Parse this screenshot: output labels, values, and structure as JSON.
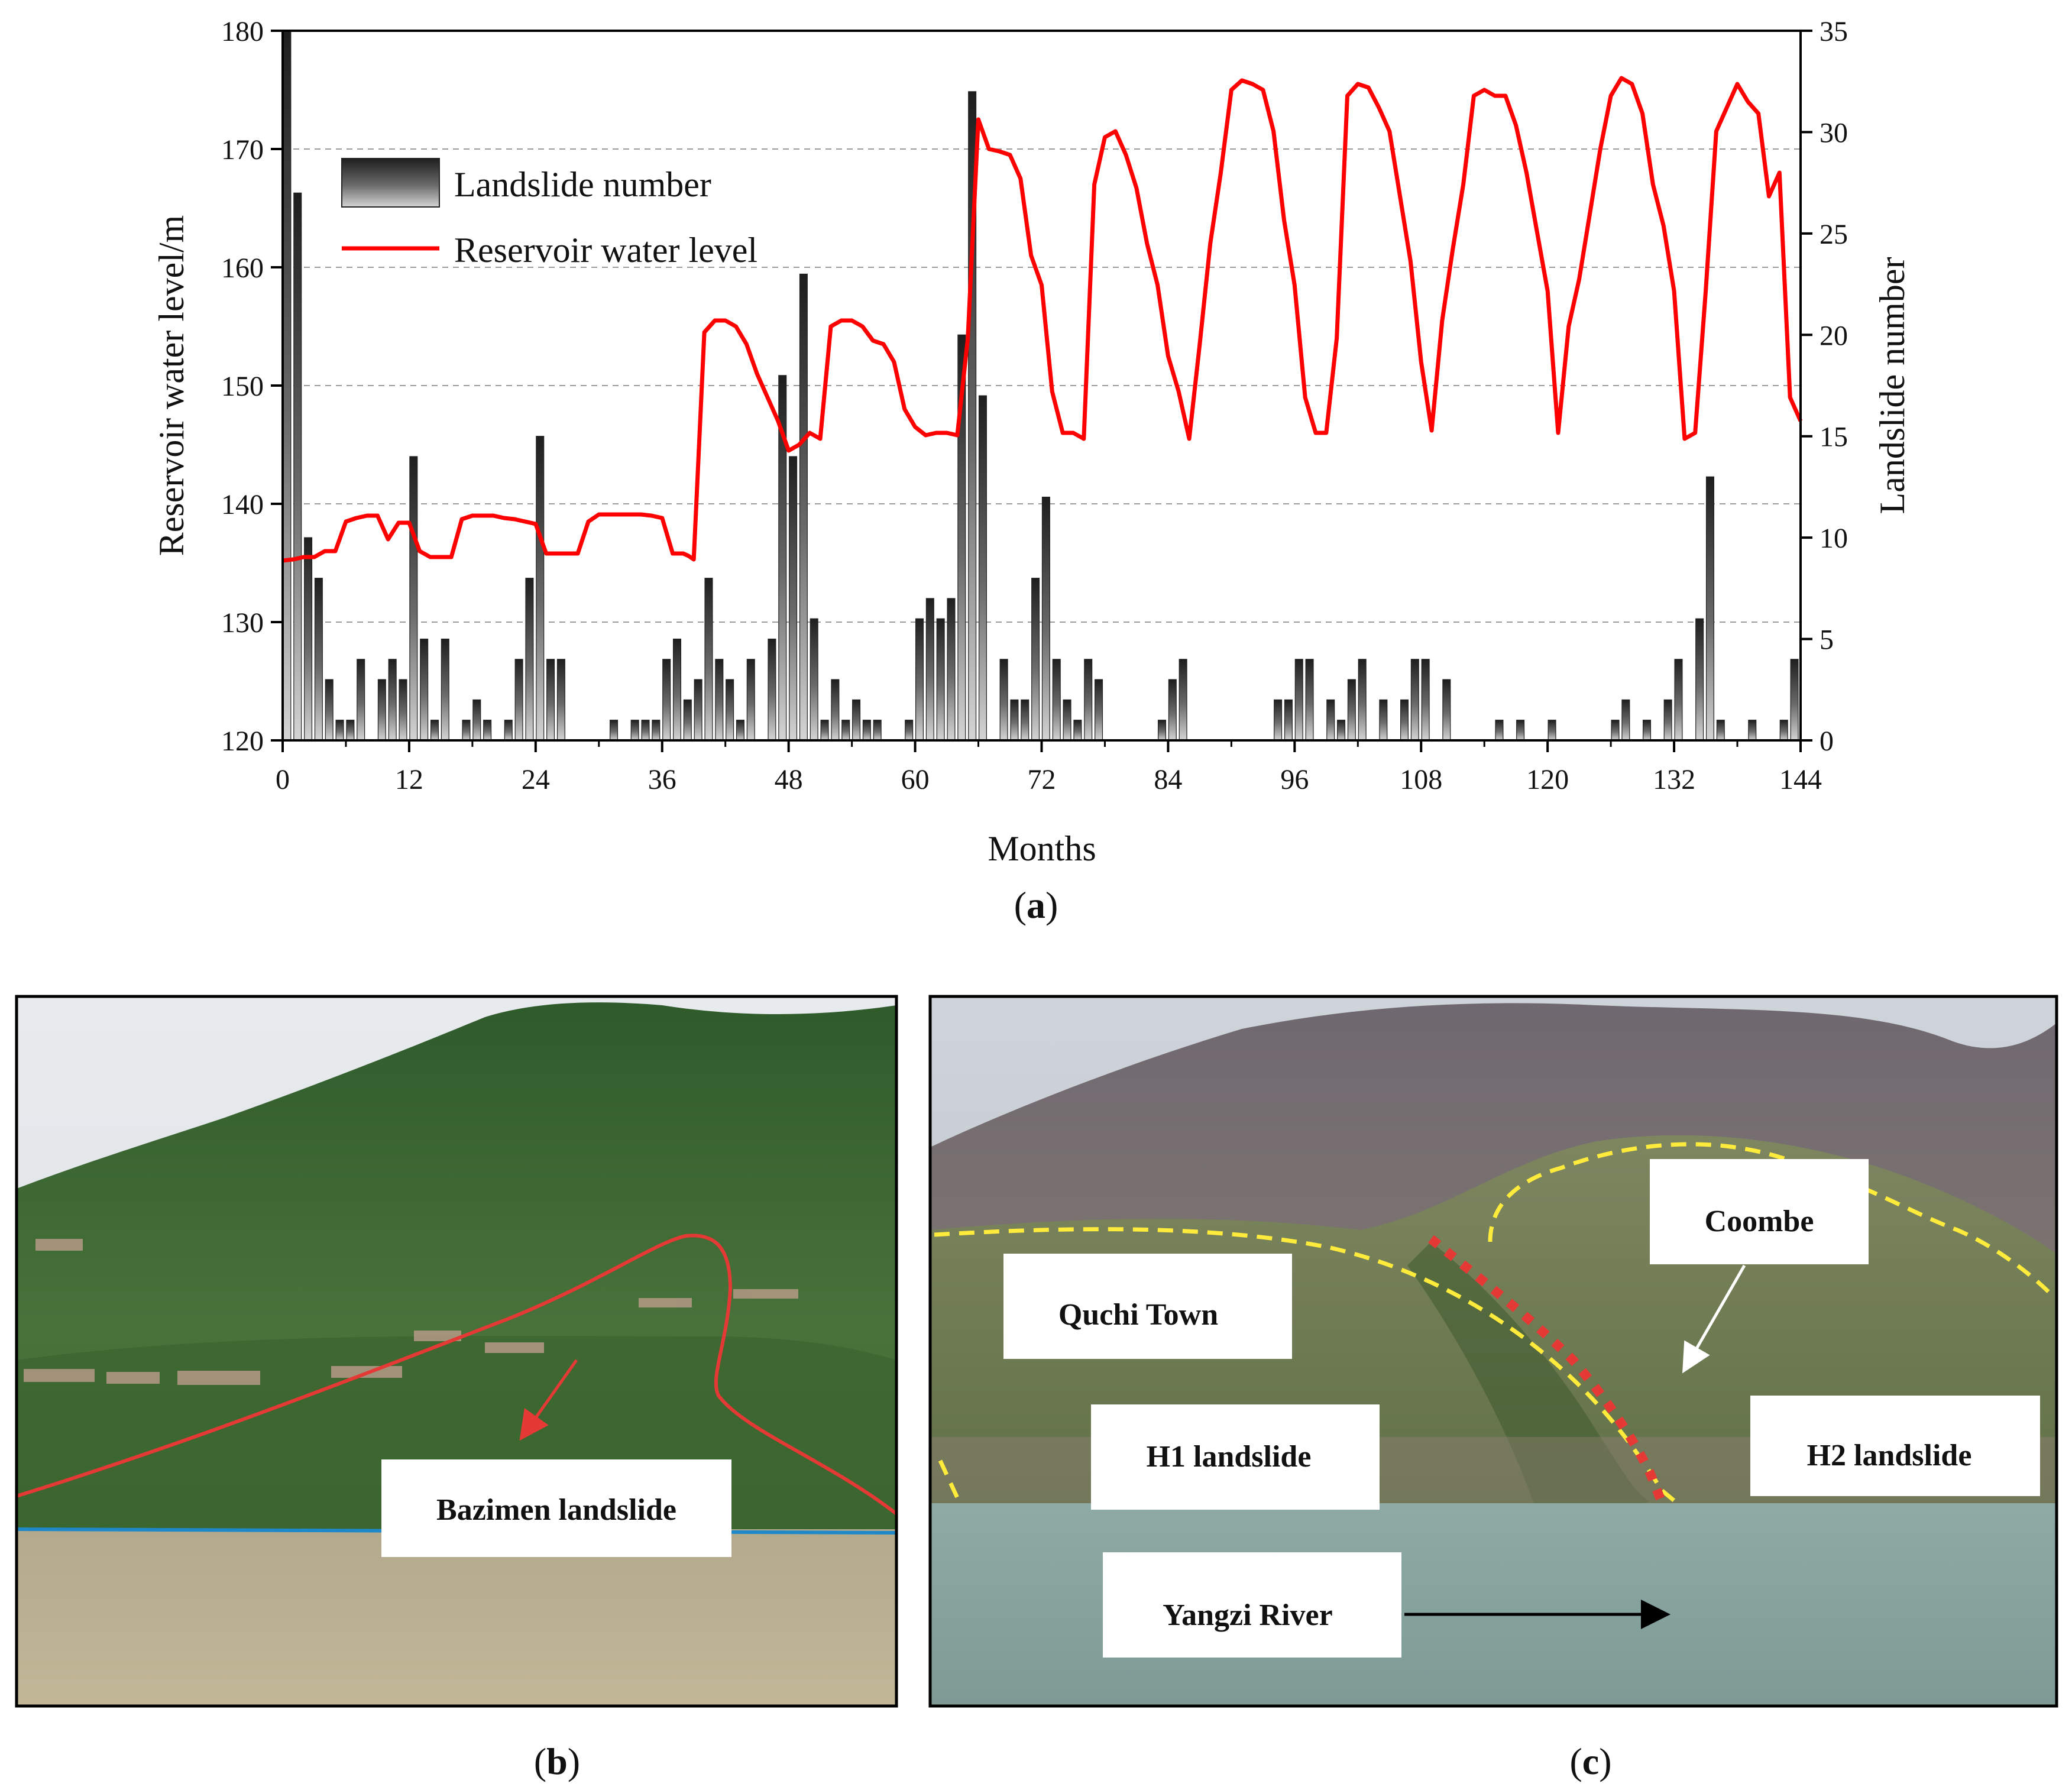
{
  "chart_data": {
    "type": "bar",
    "xlabel": "Months",
    "ylabel_left": "Reservoir water level/m",
    "ylabel_right": "Landslide number",
    "xlim": [
      0,
      144
    ],
    "ylim_left": [
      120,
      180
    ],
    "ylim_right": [
      0,
      35
    ],
    "x_ticks": [
      0,
      12,
      24,
      36,
      48,
      60,
      72,
      84,
      96,
      108,
      120,
      132,
      144
    ],
    "y_left_ticks": [
      120,
      130,
      140,
      150,
      160,
      170,
      180
    ],
    "y_right_ticks": [
      0,
      5,
      10,
      15,
      20,
      25,
      30,
      35
    ],
    "grid": "dashed horizontal",
    "legend_position": "top-left",
    "panel_label": "a",
    "series": [
      {
        "name": "Landslide number",
        "kind": "bar",
        "axis": "right",
        "x": [
          0,
          1,
          2,
          3,
          4,
          5,
          6,
          7,
          9,
          10,
          11,
          12,
          13,
          14,
          15,
          17,
          18,
          19,
          21,
          22,
          23,
          24,
          25,
          26,
          31,
          33,
          34,
          35,
          36,
          37,
          38,
          39,
          40,
          41,
          42,
          43,
          44,
          46,
          47,
          48,
          49,
          50,
          51,
          52,
          53,
          54,
          55,
          56,
          59,
          60,
          61,
          62,
          63,
          64,
          65,
          66,
          68,
          69,
          70,
          71,
          72,
          73,
          74,
          75,
          76,
          77,
          83,
          84,
          85,
          94,
          95,
          96,
          97,
          99,
          100,
          101,
          102,
          104,
          106,
          107,
          108,
          110,
          115,
          117,
          120,
          126,
          127,
          129,
          131,
          132,
          134,
          135,
          136,
          139,
          142,
          143
        ],
        "values": [
          35,
          27,
          10,
          8,
          3,
          1,
          1,
          4,
          3,
          4,
          3,
          14,
          5,
          1,
          5,
          1,
          2,
          1,
          1,
          4,
          8,
          15,
          4,
          4,
          1,
          1,
          1,
          1,
          4,
          5,
          2,
          3,
          8,
          4,
          3,
          1,
          4,
          5,
          18,
          14,
          23,
          6,
          1,
          3,
          1,
          2,
          1,
          1,
          1,
          6,
          7,
          6,
          7,
          20,
          32,
          17,
          4,
          2,
          2,
          8,
          12,
          4,
          2,
          1,
          4,
          3,
          1,
          3,
          4,
          2,
          2,
          4,
          4,
          2,
          1,
          3,
          4,
          2,
          2,
          4,
          4,
          3,
          1,
          1,
          1,
          1,
          2,
          1,
          2,
          4,
          6,
          13,
          1,
          1,
          1,
          4
        ]
      },
      {
        "name": "Reservoir water level",
        "kind": "line",
        "axis": "left",
        "color": "#ff0000",
        "x": [
          0,
          1,
          2,
          3,
          4,
          5,
          6,
          7,
          8,
          9,
          10,
          11,
          12,
          13,
          14,
          15,
          16,
          17,
          18,
          19,
          20,
          21,
          22,
          23,
          24,
          25,
          26,
          27,
          28,
          29,
          30,
          31,
          32,
          33,
          34,
          35,
          36,
          37,
          38,
          38.5,
          39,
          40,
          41,
          42,
          43,
          44,
          45,
          46,
          47,
          48,
          49,
          50,
          51,
          52,
          53,
          54,
          55,
          56,
          57,
          58,
          59,
          60,
          61,
          62,
          63,
          64,
          65,
          66,
          67,
          68,
          69,
          70,
          71,
          72,
          73,
          74,
          75,
          76,
          77,
          78,
          79,
          80,
          81,
          82,
          83,
          84,
          85,
          86,
          87,
          88,
          89,
          90,
          91,
          92,
          93,
          94,
          95,
          96,
          97,
          98,
          99,
          100,
          101,
          102,
          103,
          104,
          105,
          106,
          107,
          108,
          109,
          110,
          111,
          112,
          113,
          114,
          115,
          116,
          117,
          118,
          119,
          120,
          121,
          122,
          123,
          124,
          125,
          126,
          127,
          128,
          129,
          130,
          131,
          132,
          133,
          134,
          135,
          136,
          137,
          138,
          139,
          140,
          141,
          142,
          143,
          144
        ],
        "values": [
          135.2,
          135.3,
          135.5,
          135.5,
          136,
          136,
          138.5,
          138.8,
          139,
          139,
          137,
          138.4,
          138.4,
          136,
          135.5,
          135.5,
          135.5,
          138.7,
          139,
          139,
          139,
          138.8,
          138.7,
          138.5,
          138.3,
          135.8,
          135.8,
          135.8,
          135.8,
          138.5,
          139.1,
          139.1,
          139.1,
          139.1,
          139.1,
          139,
          138.8,
          135.8,
          135.8,
          135.6,
          135.3,
          154.5,
          155.5,
          155.5,
          155,
          153.5,
          151,
          149,
          147,
          144.5,
          145,
          146,
          145.5,
          155,
          155.5,
          155.5,
          155,
          153.8,
          153.5,
          152,
          148,
          146.5,
          145.8,
          146,
          146,
          145.8,
          154,
          172.5,
          170,
          169.8,
          169.5,
          167.5,
          161,
          158.5,
          149.5,
          146,
          146,
          145.5,
          167,
          171,
          171.5,
          169.5,
          166.7,
          162,
          158.5,
          152.5,
          149.5,
          145.5,
          153.5,
          162,
          168,
          175,
          175.8,
          175.5,
          175,
          171.5,
          164,
          158.5,
          149,
          146,
          146,
          154,
          174.5,
          175.5,
          175.2,
          173.5,
          171.5,
          166,
          160.5,
          152,
          146.2,
          155.5,
          161.5,
          167,
          174.5,
          175,
          174.5,
          174.5,
          172,
          168,
          163,
          158,
          146,
          155,
          159,
          164.5,
          170,
          174.5,
          176,
          175.5,
          173,
          167,
          163.5,
          158,
          145.5,
          146,
          158,
          171.5,
          173.5,
          175.5,
          174,
          173,
          166,
          168,
          149,
          147
        ]
      }
    ]
  },
  "legend": {
    "bar_label": "Landslide number",
    "line_label": "Reservoir water level"
  },
  "panel_b": {
    "label": "b",
    "annotation": "Bazimen landslide",
    "outline_color": "#e53935",
    "waterline_color": "#1e88c8"
  },
  "panel_c": {
    "label": "c",
    "annotations": {
      "quchi": "Quchi Town",
      "coombe": "Coombe",
      "h1": "H1 landslide",
      "h2": "H2 landslide",
      "river": "Yangzi River"
    },
    "boundary_color": "#ffeb3b",
    "h2_color": "#e53935"
  }
}
